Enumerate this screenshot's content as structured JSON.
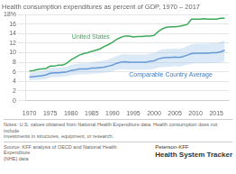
{
  "chart_data": {
    "type": "line",
    "title": "Health consumption expenditures as percent of GDP, 1970 – 2017",
    "x": [
      1970,
      1971,
      1972,
      1973,
      1974,
      1975,
      1976,
      1977,
      1978,
      1979,
      1980,
      1981,
      1982,
      1983,
      1984,
      1985,
      1986,
      1987,
      1988,
      1989,
      1990,
      1991,
      1992,
      1993,
      1994,
      1995,
      1996,
      1997,
      1998,
      1999,
      2000,
      2001,
      2002,
      2003,
      2004,
      2005,
      2006,
      2007,
      2008,
      2009,
      2010,
      2011,
      2012,
      2013,
      2014,
      2015,
      2016,
      2017
    ],
    "series": [
      {
        "name": "United States",
        "color": "#3daa5a",
        "values": [
          6.2,
          6.3,
          6.5,
          6.6,
          6.7,
          7.2,
          7.2,
          7.4,
          7.4,
          7.8,
          8.5,
          9.0,
          9.5,
          9.8,
          10.0,
          10.3,
          10.5,
          10.8,
          11.3,
          11.7,
          12.2,
          12.8,
          13.2,
          13.5,
          13.5,
          13.3,
          13.4,
          13.4,
          13.5,
          13.5,
          13.6,
          14.4,
          15.0,
          15.3,
          15.4,
          15.4,
          15.5,
          15.7,
          15.9,
          17.0,
          17.0,
          17.0,
          17.1,
          17.0,
          17.0,
          17.0,
          17.2,
          17.2
        ]
      },
      {
        "name": "Comparable Country Average",
        "color": "#3b7bc8",
        "values": [
          4.9,
          5.0,
          5.1,
          5.2,
          5.4,
          5.7,
          5.8,
          5.8,
          5.9,
          6.0,
          6.3,
          6.4,
          6.6,
          6.6,
          6.6,
          6.8,
          6.8,
          6.9,
          7.0,
          7.2,
          7.4,
          7.8,
          8.0,
          8.1,
          8.0,
          8.0,
          8.0,
          8.0,
          8.0,
          8.2,
          8.3,
          8.7,
          8.9,
          9.0,
          9.0,
          9.1,
          9.0,
          9.2,
          9.5,
          9.8,
          9.9,
          9.9,
          9.9,
          9.9,
          10.0,
          10.0,
          10.2,
          10.5
        ]
      }
    ],
    "band": {
      "color": "#a8c8e8",
      "low": [
        4.2,
        4.3,
        4.3,
        4.4,
        4.5,
        4.8,
        4.9,
        4.9,
        5.0,
        5.1,
        5.3,
        5.4,
        5.5,
        5.5,
        5.5,
        5.6,
        5.6,
        5.7,
        5.8,
        5.9,
        6.1,
        6.4,
        6.5,
        6.5,
        6.4,
        6.4,
        6.4,
        6.4,
        6.4,
        6.5,
        6.6,
        6.9,
        7.0,
        7.1,
        7.1,
        7.2,
        7.1,
        7.3,
        7.5,
        7.7,
        7.8,
        7.8,
        7.8,
        7.8,
        7.9,
        7.9,
        8.0,
        8.2
      ],
      "high": [
        5.8,
        5.9,
        6.0,
        6.1,
        6.4,
        6.8,
        6.9,
        6.9,
        7.0,
        7.1,
        7.5,
        7.6,
        7.8,
        7.8,
        7.8,
        8.0,
        8.1,
        8.2,
        8.4,
        8.6,
        8.9,
        9.3,
        9.6,
        9.7,
        9.6,
        9.6,
        9.6,
        9.6,
        9.6,
        9.8,
        9.9,
        10.4,
        10.7,
        10.8,
        10.8,
        10.9,
        10.8,
        11.0,
        11.4,
        11.8,
        11.9,
        11.9,
        11.9,
        11.9,
        12.0,
        12.0,
        12.3,
        12.6
      ]
    },
    "xlim": [
      1969,
      2018
    ],
    "xticks": [
      1970,
      1975,
      1980,
      1985,
      1990,
      1995,
      2000,
      2005,
      2010,
      2015
    ],
    "ylim": [
      0,
      18
    ],
    "yticks": [
      0,
      2,
      4,
      6,
      8,
      10,
      12,
      14,
      16,
      {
        "value": 18,
        "label": "18%"
      }
    ],
    "grid": true,
    "notes": "Notes: U.S. values obtained from National Health Expenditure data. Health consumption does not include\ninvestments in structures, equipment, or research.",
    "source": "Source: KFF analysis of OECD and National Health Expenditure\n(NHE) data",
    "branding": [
      "Peterson-KFF",
      "Health System Tracker"
    ]
  }
}
